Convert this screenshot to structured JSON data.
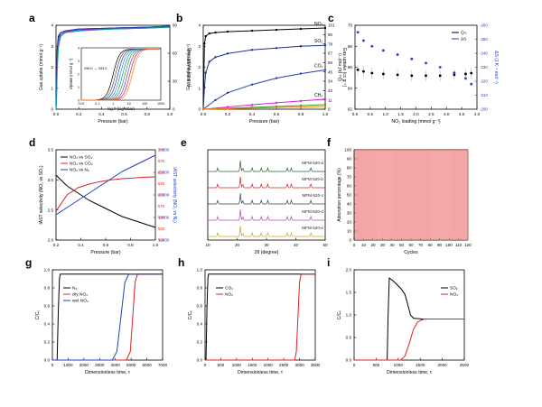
{
  "chart_data": [
    {
      "id": "a",
      "type": "line",
      "letter": "a",
      "xlabel": "Pressure (bar)",
      "ylabel": "Gas uptake (mmol g⁻¹)",
      "y2label": "Gas uptake (cc g⁻¹)",
      "xlim": [
        0,
        1.0
      ],
      "ylim": [
        0,
        4.5
      ],
      "y2lim": [
        0,
        100
      ],
      "xticks": [
        "0.0",
        "0.2",
        "0.4",
        "0.6",
        "0.8",
        "1.0"
      ],
      "yticks": [
        "0",
        "1",
        "2",
        "3",
        "4"
      ],
      "y2ticks": [
        "0",
        "30",
        "60",
        "90"
      ],
      "series": [
        {
          "color": "#000000",
          "x": [
            0,
            0.005,
            0.01,
            0.02,
            0.04,
            0.08,
            0.2,
            0.5,
            0.8,
            1.0
          ],
          "y": [
            0,
            1.5,
            3.2,
            3.9,
            4.1,
            4.2,
            4.3,
            4.35,
            4.4,
            4.45
          ]
        },
        {
          "color": "#1f3fbf",
          "x": [
            0,
            0.005,
            0.01,
            0.02,
            0.04,
            0.08,
            0.2,
            0.5,
            0.8,
            1.0
          ],
          "y": [
            0,
            1.2,
            2.9,
            3.8,
            4.1,
            4.2,
            4.3,
            4.35,
            4.4,
            4.45
          ]
        },
        {
          "color": "#8a2be2",
          "x": [
            0,
            0.005,
            0.01,
            0.02,
            0.04,
            0.08,
            0.2,
            0.5,
            0.8,
            1.0
          ],
          "y": [
            0,
            0.9,
            2.5,
            3.6,
            4.0,
            4.15,
            4.25,
            4.3,
            4.35,
            4.4
          ]
        },
        {
          "color": "#00a0a0",
          "x": [
            0,
            0.005,
            0.01,
            0.02,
            0.04,
            0.08,
            0.2,
            0.5,
            0.8,
            1.0
          ],
          "y": [
            0,
            0.6,
            2.0,
            3.3,
            3.9,
            4.1,
            4.2,
            4.3,
            4.35,
            4.4
          ]
        }
      ],
      "inset": {
        "xlabel": "log P (log mbar)",
        "ylabel": "Uptake (mmol g⁻¹)",
        "xlim": [
          -2,
          3
        ],
        "ylim": [
          0,
          4.5
        ],
        "xticks": [
          "0.01",
          "0.1",
          "1",
          "10",
          "100",
          "1000"
        ],
        "yticks": [
          "0",
          "1",
          "2",
          "3",
          "4"
        ],
        "annotation": "298 K → 343 K",
        "colors": [
          "#000000",
          "#555555",
          "#1f3fbf",
          "#3f8fd0",
          "#00a0a0",
          "#2ca02c",
          "#8a2be2",
          "#d62728",
          "#ff7f0e"
        ],
        "midpoints": [
          0.0,
          0.15,
          0.3,
          0.45,
          0.6,
          0.75,
          0.9,
          1.05,
          1.2
        ]
      }
    },
    {
      "id": "b",
      "type": "line",
      "letter": "b",
      "xlabel": "Pressure (bar)",
      "ylabel": "Gas uptake (mmol g⁻¹)",
      "y2label": "Gas uptake (cc g⁻¹)",
      "xlim": [
        0,
        1.0
      ],
      "ylim": [
        0,
        4.6
      ],
      "y2lim": [
        0,
        101
      ],
      "xticks": [
        "0.0",
        "0.2",
        "0.4",
        "0.6",
        "0.8",
        "1.0"
      ],
      "yticks": [
        "0",
        "1",
        "2",
        "3",
        "4"
      ],
      "y2ticks": [
        "0",
        "11",
        "22",
        "34",
        "45",
        "56",
        "67",
        "78",
        "90",
        "101"
      ],
      "series": [
        {
          "name": "NO₂",
          "color": "#000000",
          "x": [
            0,
            0.01,
            0.02,
            0.05,
            0.1,
            0.2,
            0.4,
            0.6,
            0.8,
            1.0
          ],
          "y": [
            0,
            3.6,
            4.0,
            4.15,
            4.2,
            4.25,
            4.3,
            4.35,
            4.4,
            4.45
          ]
        },
        {
          "name": "SO₂",
          "color": "#1f2f8f",
          "x": [
            0,
            0.01,
            0.02,
            0.05,
            0.1,
            0.2,
            0.4,
            0.6,
            0.8,
            1.0
          ],
          "y": [
            0,
            1.2,
            2.0,
            2.6,
            2.85,
            3.05,
            3.25,
            3.35,
            3.45,
            3.5
          ]
        },
        {
          "name": "CO₂",
          "color": "#2a3fb0",
          "x": [
            0,
            0.1,
            0.2,
            0.4,
            0.6,
            0.8,
            1.0
          ],
          "y": [
            0,
            0.5,
            0.9,
            1.35,
            1.7,
            1.95,
            2.15
          ]
        },
        {
          "name": "CH₄",
          "color": "#e020d0",
          "x": [
            0,
            0.2,
            0.4,
            0.6,
            0.8,
            1.0
          ],
          "y": [
            0,
            0.12,
            0.24,
            0.35,
            0.45,
            0.55
          ]
        },
        {
          "name": "",
          "color": "#2ca02c",
          "x": [
            0,
            0.2,
            0.4,
            0.6,
            0.8,
            1.0
          ],
          "y": [
            0,
            0.05,
            0.1,
            0.15,
            0.2,
            0.25
          ]
        },
        {
          "name": "",
          "color": "#ff7f0e",
          "x": [
            0,
            0.2,
            0.4,
            0.6,
            0.8,
            1.0
          ],
          "y": [
            0,
            0.03,
            0.06,
            0.09,
            0.12,
            0.15
          ]
        }
      ]
    },
    {
      "id": "c",
      "type": "scatter",
      "letter": "c",
      "xlabel": "NO₂ loading (mmol g⁻¹)",
      "ylabel": "Qₛₜ (kJ mol⁻¹)",
      "y2label": "ΔS (J K⁻¹ mol⁻¹)",
      "xlim": [
        0,
        4.3
      ],
      "ylim": [
        60,
        70
      ],
      "y2lim": [
        -260,
        -200
      ],
      "xticks": [
        "0.0",
        "0.5",
        "1.0",
        "1.5",
        "2.0",
        "2.5",
        "3.0",
        "3.5",
        "4.0"
      ],
      "yticks": [
        "62",
        "64",
        "66",
        "68",
        "70"
      ],
      "y2ticks": [
        "-200",
        "-210",
        "-220",
        "-230",
        "-240",
        "-250",
        "-260"
      ],
      "legend": [
        "Qₛₜ",
        "ΔS"
      ],
      "series": [
        {
          "name": "Qₛₜ",
          "color": "#000000",
          "x": [
            0.1,
            0.3,
            0.6,
            1.0,
            1.5,
            2.0,
            2.5,
            3.0,
            3.5,
            3.9,
            4.1
          ],
          "y": [
            64.7,
            64.5,
            64.3,
            64.2,
            64.1,
            64.0,
            64.0,
            64.0,
            64.1,
            64.2,
            64.3
          ]
        },
        {
          "name": "ΔS",
          "color": "#1f3fbf",
          "x": [
            0.1,
            0.3,
            0.6,
            1.0,
            1.5,
            2.0,
            2.5,
            3.0,
            3.5,
            3.9,
            4.1
          ],
          "y": [
            -205,
            -211,
            -215,
            -218,
            -221,
            -224,
            -227,
            -230,
            -234,
            -238,
            -242
          ]
        }
      ]
    },
    {
      "id": "d",
      "type": "line",
      "letter": "d",
      "xlabel": "Pressure (bar)",
      "ylabel": "IAST selectivity (NO₂ vs SO₂)",
      "y2label": "IAST selectivity (NO₂ vs N₂)",
      "xlim": [
        0.1,
        1.0
      ],
      "ylim": [
        1.5,
        4.0
      ],
      "y2lim": [
        14000,
        26000
      ],
      "xticks": [
        "0.2",
        "0.4",
        "0.6",
        "0.8",
        "1.0"
      ],
      "yticks": [
        "2.0",
        "2.5",
        "3.0",
        "3.5"
      ],
      "y2ticks": [
        "16000",
        "18000",
        "20000",
        "22000",
        "24000"
      ],
      "y3label": "IAST selectivity (NO₂ vs CO₂)",
      "y3ticks": [
        "500",
        "525",
        "550",
        "575",
        "600",
        "625",
        "650",
        "675",
        "700"
      ],
      "legend": [
        "NO₂ vs SO₂",
        "NO₂ vs CO₂",
        "NO₂ vs N₂"
      ],
      "series": [
        {
          "name": "NO₂ vs SO₂",
          "color": "#000000",
          "x": [
            0.1,
            0.2,
            0.3,
            0.4,
            0.5,
            0.6,
            0.7,
            0.8,
            0.9,
            1.0
          ],
          "y": [
            3.3,
            3.0,
            2.8,
            2.6,
            2.45,
            2.3,
            2.15,
            2.05,
            1.95,
            1.85
          ]
        },
        {
          "name": "NO₂ vs CO₂",
          "color": "#e02020",
          "x": [
            0.1,
            0.2,
            0.3,
            0.4,
            0.5,
            0.6,
            0.7,
            0.8,
            0.9,
            1.0
          ],
          "y": [
            2.3,
            2.75,
            2.95,
            3.05,
            3.12,
            3.17,
            3.2,
            3.22,
            3.24,
            3.25
          ]
        },
        {
          "name": "NO₂ vs N₂",
          "color": "#1f3fbf",
          "x": [
            0.1,
            0.2,
            0.3,
            0.4,
            0.5,
            0.6,
            0.7,
            0.8,
            0.9,
            1.0
          ],
          "y": [
            2.2,
            2.4,
            2.6,
            2.8,
            3.0,
            3.2,
            3.4,
            3.55,
            3.7,
            3.85
          ]
        }
      ]
    },
    {
      "id": "e",
      "type": "line",
      "letter": "e",
      "xlabel": "2θ (degree)",
      "xlim": [
        5,
        50
      ],
      "xticks": [
        "10",
        "20",
        "30",
        "40",
        "50"
      ],
      "series": [
        {
          "name": "MFM-520-e",
          "color": "#d6a020"
        },
        {
          "name": "MFM-520-d",
          "color": "#c040c0"
        },
        {
          "name": "MFM-520-c",
          "color": "#404040"
        },
        {
          "name": "MFM-520-b",
          "color": "#d62020"
        },
        {
          "name": "MFM-520-a",
          "color": "#2f5f2f"
        }
      ],
      "peaks": [
        8.8,
        17.5,
        18.4,
        22.0,
        25.5,
        28.0,
        35.5,
        37.0,
        44.5
      ]
    },
    {
      "id": "f",
      "type": "bar",
      "letter": "f",
      "xlabel": "Cycles",
      "ylabel": "Adsorption percentage (%)",
      "xlim": [
        0,
        125
      ],
      "ylim": [
        0,
        100
      ],
      "xticks": [
        "0",
        "10",
        "20",
        "30",
        "40",
        "50",
        "60",
        "70",
        "80",
        "90",
        "100",
        "110",
        "120"
      ],
      "yticks": [
        "0",
        "10",
        "20",
        "30",
        "40",
        "50",
        "60",
        "70",
        "80",
        "90",
        "100"
      ],
      "cycles": 125,
      "value": 100,
      "color": "#f08080"
    },
    {
      "id": "g",
      "type": "line",
      "letter": "g",
      "xlabel": "Dimensionless time, τ",
      "ylabel": "C/C₀",
      "xlim": [
        0,
        7000
      ],
      "ylim": [
        0,
        1.05
      ],
      "xticks": [
        "0",
        "1000",
        "2000",
        "3000",
        "4000",
        "5000",
        "6000",
        "7000"
      ],
      "yticks": [
        "0.0",
        "0.2",
        "0.4",
        "0.6",
        "0.8",
        "1.0"
      ],
      "legend": [
        "N₂",
        "dry NO₂",
        "wet NO₂"
      ],
      "series": [
        {
          "name": "N₂",
          "color": "#000000",
          "x": [
            0,
            300,
            380,
            450,
            500,
            7000
          ],
          "y": [
            0,
            0,
            0.6,
            0.95,
            1.0,
            1.0
          ]
        },
        {
          "name": "dry NO₂",
          "color": "#e02020",
          "x": [
            0,
            4700,
            4950,
            5100,
            5250,
            5400,
            7000
          ],
          "y": [
            0,
            0,
            0.1,
            0.5,
            0.9,
            1.0,
            1.0
          ]
        },
        {
          "name": "wet NO₂",
          "color": "#1f3fbf",
          "x": [
            0,
            3800,
            4100,
            4350,
            4600,
            4850,
            7000
          ],
          "y": [
            0,
            0,
            0.1,
            0.5,
            0.9,
            1.0,
            1.0
          ]
        }
      ]
    },
    {
      "id": "h",
      "type": "line",
      "letter": "h",
      "xlabel": "Dimensionless time, τ",
      "ylabel": "C/C₀",
      "xlim": [
        0,
        3500
      ],
      "ylim": [
        0,
        1.05
      ],
      "xticks": [
        "0",
        "500",
        "1000",
        "1500",
        "2000",
        "2500",
        "3000",
        "3500"
      ],
      "yticks": [
        "0.0",
        "0.2",
        "0.4",
        "0.6",
        "0.8",
        "1.0"
      ],
      "legend": [
        "CO₂",
        "NO₂"
      ],
      "series": [
        {
          "name": "CO₂",
          "color": "#000000",
          "x": [
            0,
            30,
            60,
            90,
            110,
            3500
          ],
          "y": [
            0,
            0,
            0.6,
            0.95,
            1.0,
            1.0
          ]
        },
        {
          "name": "NO₂",
          "color": "#e02020",
          "x": [
            0,
            2850,
            2900,
            2950,
            3000,
            3050,
            3500
          ],
          "y": [
            0,
            0,
            0.1,
            0.5,
            0.9,
            1.0,
            1.0
          ]
        }
      ]
    },
    {
      "id": "i",
      "type": "line",
      "letter": "i",
      "xlabel": "Dimensionless time, τ",
      "ylabel": "C/C₀",
      "xlim": [
        0,
        2600
      ],
      "ylim": [
        0,
        2.2
      ],
      "xticks": [
        "0",
        "500",
        "1000",
        "1500",
        "2000",
        "2500"
      ],
      "yticks": [
        "0.0",
        "0.5",
        "1.0",
        "1.5",
        "2.0"
      ],
      "legend": [
        "SO₂",
        "NO₂"
      ],
      "series": [
        {
          "name": "SO₂",
          "color": "#000000",
          "x": [
            0,
            780,
            800,
            830,
            900,
            1000,
            1100,
            1200,
            1280,
            1330,
            1400,
            1600,
            2600
          ],
          "y": [
            0,
            0,
            1.0,
            2.0,
            1.95,
            1.85,
            1.75,
            1.6,
            1.3,
            1.1,
            1.02,
            1.0,
            1.0
          ]
        },
        {
          "name": "NO₂",
          "color": "#e02020",
          "x": [
            0,
            1100,
            1200,
            1300,
            1400,
            1500,
            1650,
            2600
          ],
          "y": [
            0,
            0,
            0.1,
            0.4,
            0.75,
            0.93,
            1.0,
            1.0
          ]
        }
      ]
    }
  ]
}
